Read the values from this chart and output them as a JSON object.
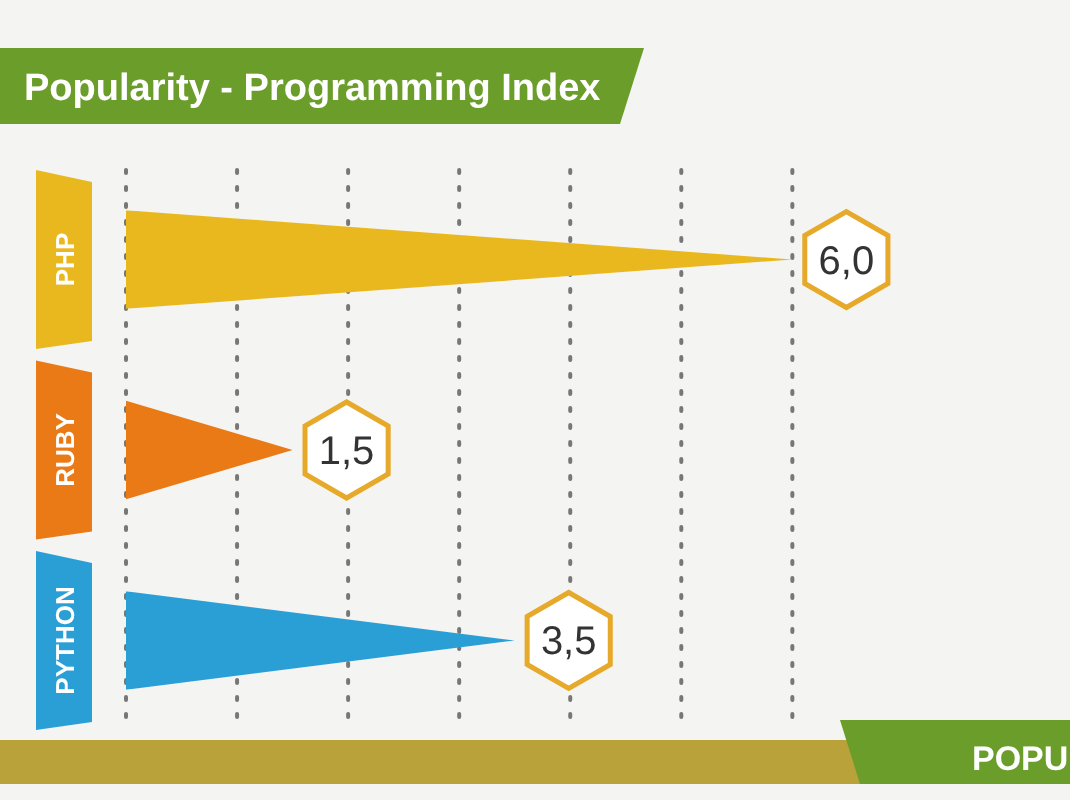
{
  "chart_data": {
    "type": "bar",
    "orientation": "horizontal",
    "title": "Popularity - Programming Index",
    "categories": [
      "PHP",
      "RUBY",
      "PYTHON"
    ],
    "values": [
      6.0,
      1.5,
      3.5
    ],
    "colors": [
      "#e9b81f",
      "#e97a16",
      "#2a9fd6"
    ],
    "value_labels": [
      "6,0",
      "1,5",
      "3,5"
    ],
    "xlim": [
      0,
      8.5
    ],
    "xticks": [
      {
        "value": 0,
        "label": null
      },
      {
        "value": 1,
        "label": null
      },
      {
        "value": 2,
        "label": null
      },
      {
        "value": 3,
        "label": null
      },
      {
        "value": 4,
        "label": null
      },
      {
        "value": 5,
        "label": null
      },
      {
        "value": 6,
        "label": null
      }
    ],
    "grid": "x",
    "annotations": [
      "POPU"
    ]
  }
}
